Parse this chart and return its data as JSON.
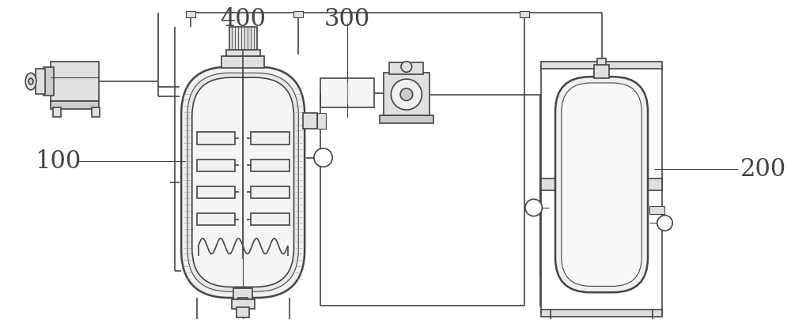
{
  "bg_color": "#ffffff",
  "line_color": "#444444",
  "fill_light": "#f0f0f0",
  "fill_mid": "#e0e0e0",
  "fill_dark": "#cccccc",
  "label_100": "100",
  "label_200": "200",
  "label_300": "300",
  "label_400": "400",
  "label_fontsize": 22,
  "figsize": [
    10.0,
    4.09
  ],
  "dpi": 100
}
